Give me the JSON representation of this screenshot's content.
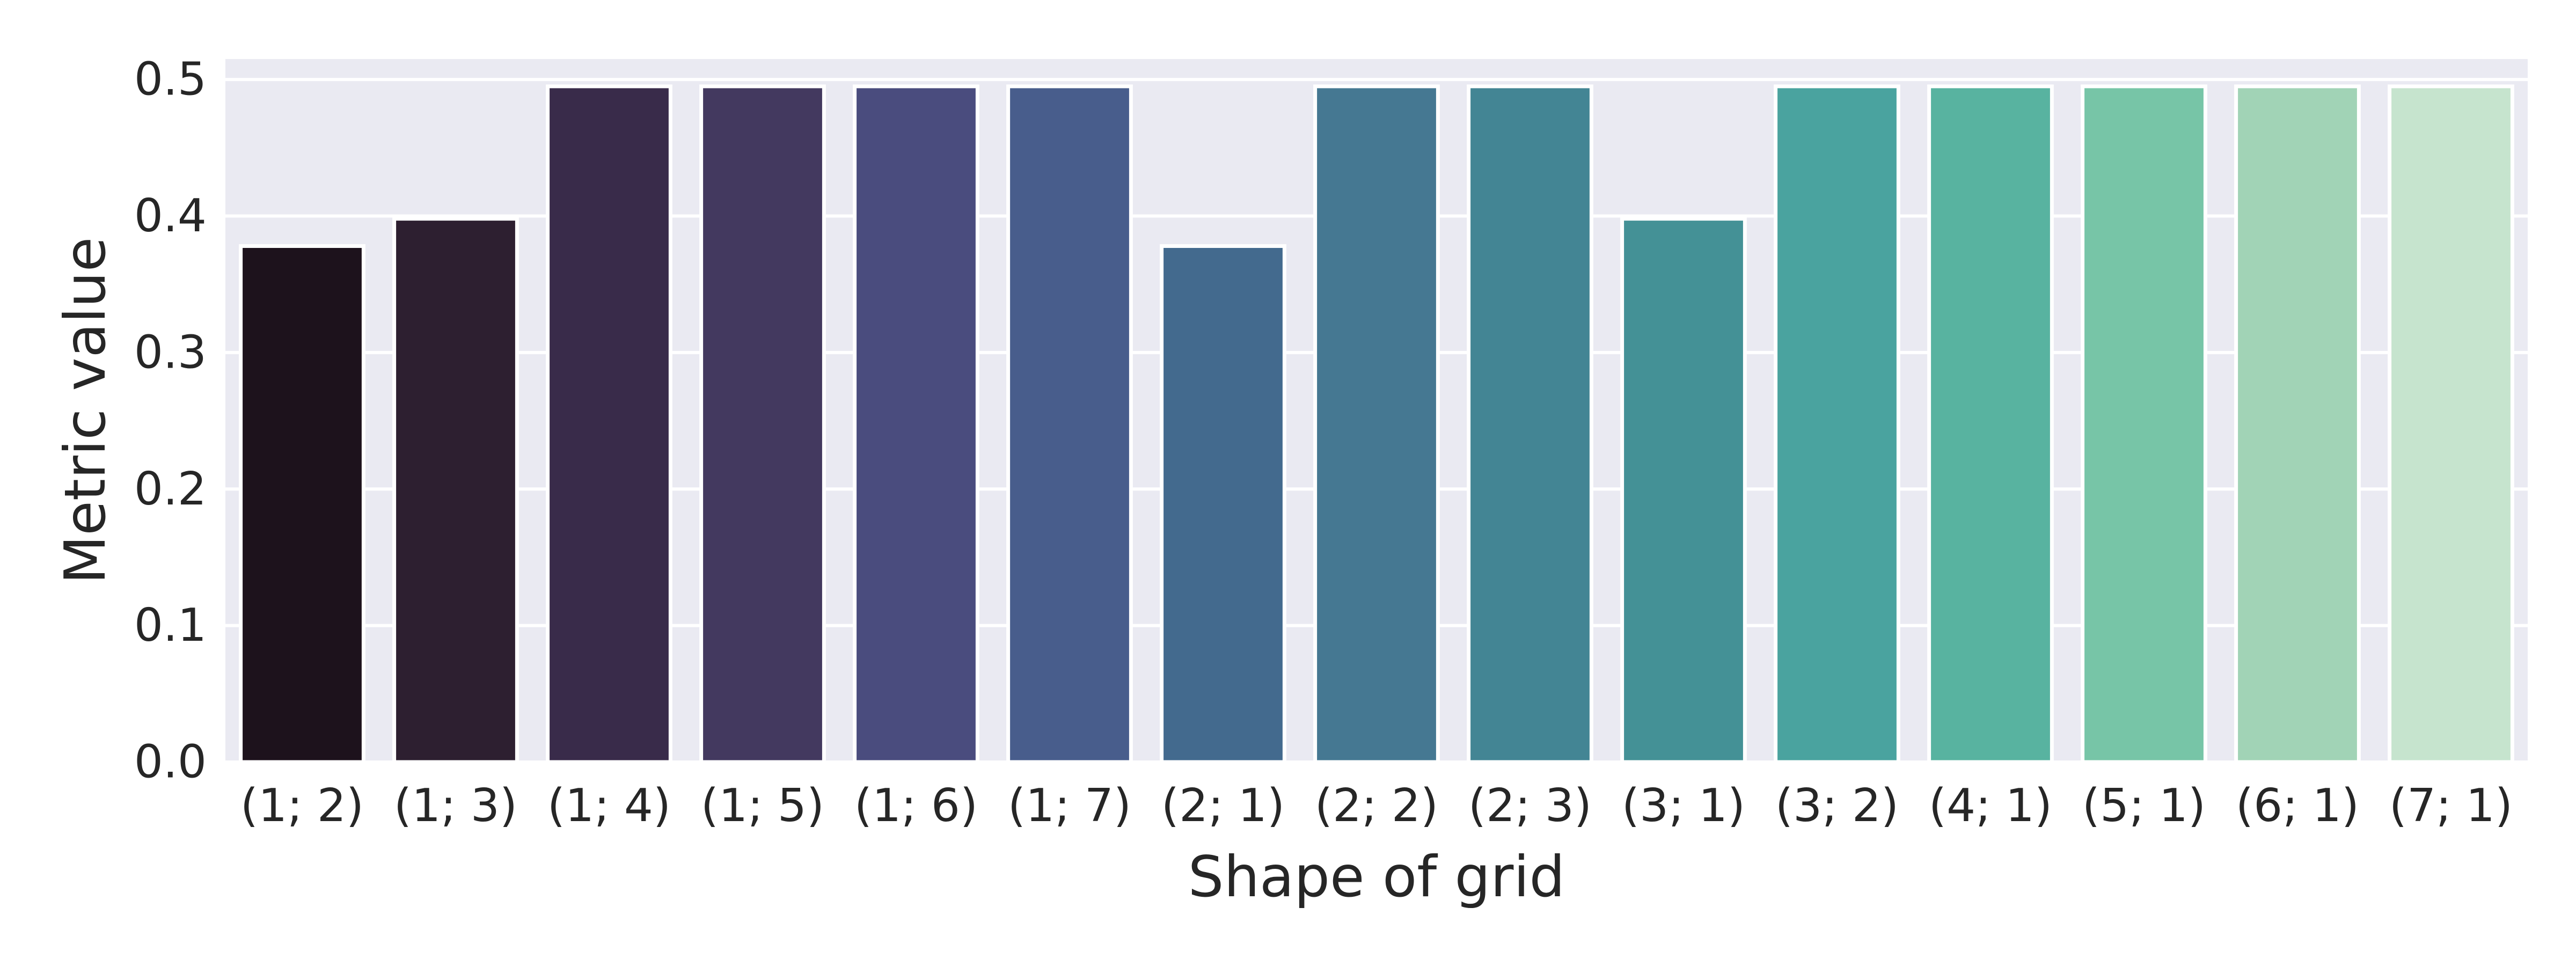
{
  "chart_data": {
    "type": "bar",
    "title": "",
    "xlabel": "Shape of grid",
    "ylabel": "Metric value",
    "ylim": [
      0,
      0.515
    ],
    "yticks": [
      0.0,
      0.1,
      0.2,
      0.3,
      0.4,
      0.5
    ],
    "ytick_labels": [
      "0.0",
      "0.1",
      "0.2",
      "0.3",
      "0.4",
      "0.5"
    ],
    "grid": true,
    "legend": "none",
    "background_color": "#EAEAF2",
    "grid_color": "#FFFFFF",
    "bar_edge_color": "#FFFFFF",
    "categories": [
      "(1; 2)",
      "(1; 3)",
      "(1; 4)",
      "(1; 5)",
      "(1; 6)",
      "(1; 7)",
      "(2; 1)",
      "(2; 2)",
      "(2; 3)",
      "(3; 1)",
      "(3; 2)",
      "(4; 1)",
      "(5; 1)",
      "(6; 1)",
      "(7; 1)"
    ],
    "values": [
      0.378,
      0.398,
      0.495,
      0.495,
      0.495,
      0.495,
      0.378,
      0.495,
      0.495,
      0.398,
      0.495,
      0.495,
      0.495,
      0.495,
      0.495
    ],
    "colors": [
      "#1D121C",
      "#2D1F30",
      "#392B4A",
      "#43395F",
      "#4A4C7E",
      "#485D8C",
      "#436A8E",
      "#457892",
      "#438594",
      "#449196",
      "#4AA39F",
      "#58B3A0",
      "#77C5A7",
      "#A1D3B6",
      "#C6E4CE"
    ]
  }
}
